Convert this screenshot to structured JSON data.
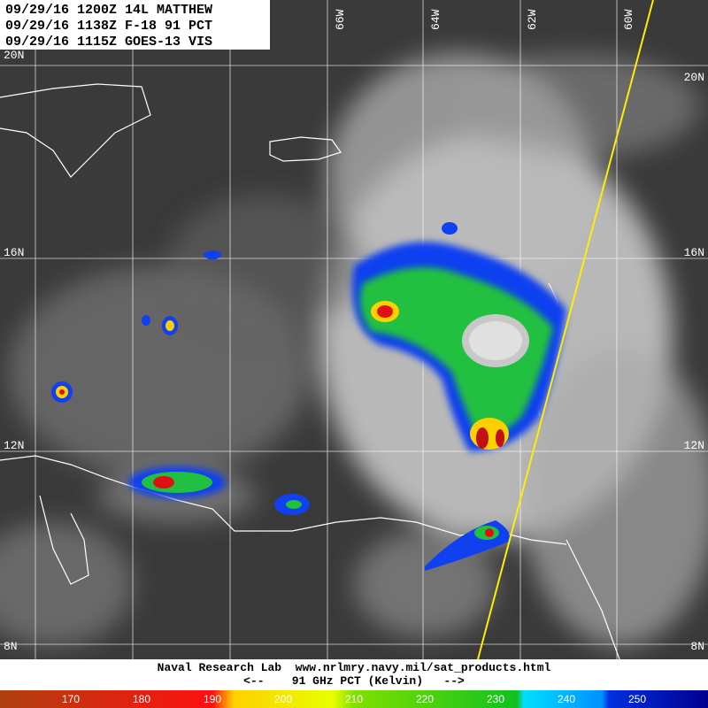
{
  "header": {
    "lines": [
      "09/29/16 1200Z 14L MATTHEW",
      "09/29/16 1138Z F-18 91 PCT",
      "09/29/16 1115Z GOES-13 VIS"
    ]
  },
  "grid": {
    "lat_labels_left": [
      "20N",
      "16N",
      "12N",
      "8N"
    ],
    "lat_labels_right": [
      "20N",
      "16N",
      "12N",
      "8N"
    ],
    "lon_labels": [
      "66W",
      "64W",
      "62W",
      "60W"
    ]
  },
  "footer": {
    "credit": "Naval Research Lab  www.nrlmry.navy.mil/sat_products.html",
    "legend_title": "<--    91 GHz PCT (Kelvin)   -->"
  },
  "colorbar": {
    "labels": [
      170,
      180,
      190,
      200,
      210,
      220,
      230,
      240,
      250
    ]
  }
}
